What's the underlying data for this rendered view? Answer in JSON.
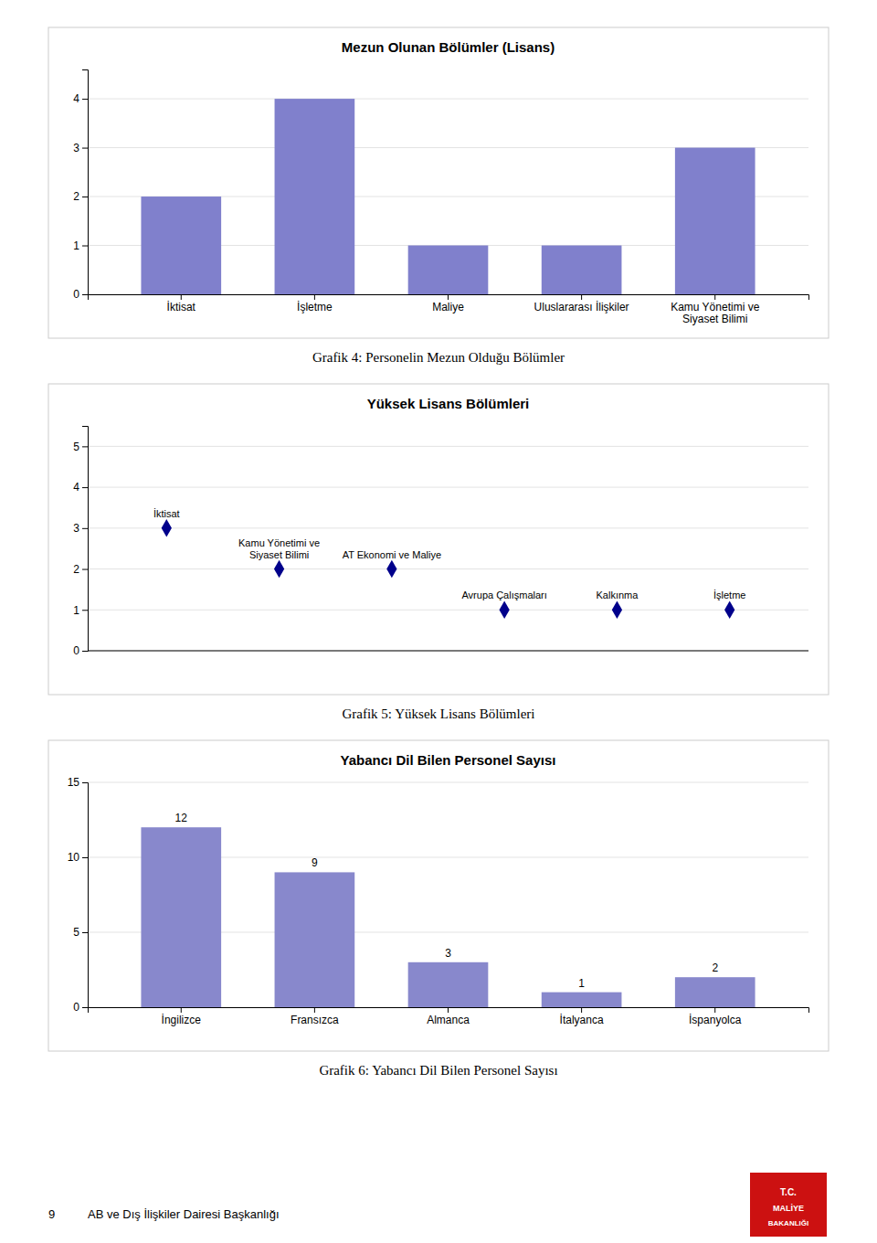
{
  "chart_data": [
    {
      "type": "bar",
      "title": "Mezun Olunan Bölümler (Lisans)",
      "categories": [
        "İktisat",
        "İşletme",
        "Maliye",
        "Uluslararası İlişkiler",
        "Kamu Yönetimi ve\nSiyaset Bilimi"
      ],
      "values": [
        2,
        4,
        1,
        1,
        3
      ],
      "color": "#8080CC",
      "ylim": [
        0,
        4.6
      ],
      "yticks": [
        0,
        1,
        2,
        3,
        4
      ],
      "grid": true,
      "caption": "Grafik 4: Personelin Mezun Olduğu Bölümler"
    },
    {
      "type": "scatter",
      "title": "Yüksek Lisans Bölümleri",
      "categories": [
        "İktisat",
        "Kamu Yönetimi ve\nSiyaset Bilimi",
        "AT Ekonomi ve Maliye",
        "Avrupa Çalışmaları",
        "Kalkınma",
        "İşletme"
      ],
      "values": [
        3,
        2,
        2,
        1,
        1,
        1
      ],
      "color": "#00008B",
      "marker": "diamond",
      "ylim": [
        0,
        5.5
      ],
      "yticks": [
        0,
        1,
        2,
        3,
        4,
        5
      ],
      "grid": true,
      "tick_labels": "y",
      "caption": "Grafik 5: Yüksek Lisans Bölümleri"
    },
    {
      "type": "bar",
      "title": "Yabancı Dil Bilen Personel Sayısı",
      "categories": [
        "İngilizce",
        "Fransızca",
        "Almanca",
        "İtalyanca",
        "İspanyolca"
      ],
      "values": [
        12,
        9,
        3,
        1,
        2
      ],
      "color": "#8888CC",
      "data_labels": true,
      "ylim": [
        0,
        15
      ],
      "yticks": [
        0,
        5,
        10,
        15
      ],
      "grid": true,
      "caption": "Grafik 6: Yabancı Dil Bilen Personel Sayısı"
    }
  ],
  "page_number": "9",
  "footer_text": "AB ve Dış İlişkiler Dairesi Başkanlığı",
  "logo_text": [
    "T.C.",
    "MALİYE",
    "BAKANLIĞI"
  ],
  "logo_color": "#CC1111"
}
